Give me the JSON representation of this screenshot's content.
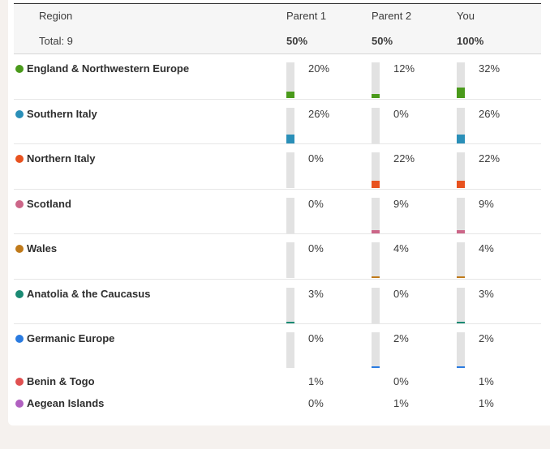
{
  "header": {
    "region_label": "Region",
    "total_label": "Total: 9",
    "columns": [
      {
        "label": "Parent 1",
        "total": "50%"
      },
      {
        "label": "Parent 2",
        "total": "50%"
      },
      {
        "label": "You",
        "total": "100%"
      }
    ]
  },
  "rows": [
    {
      "region": "England & Northwestern Europe",
      "color": "#4a9a1b",
      "values": [
        "20%",
        "12%",
        "32%"
      ],
      "fractions": [
        0.2,
        0.12,
        0.32
      ],
      "show_bars": true
    },
    {
      "region": "Southern Italy",
      "color": "#2a8fb8",
      "values": [
        "26%",
        "0%",
        "26%"
      ],
      "fractions": [
        0.26,
        0.0,
        0.26
      ],
      "show_bars": true
    },
    {
      "region": "Northern Italy",
      "color": "#e8521f",
      "values": [
        "0%",
        "22%",
        "22%"
      ],
      "fractions": [
        0.0,
        0.22,
        0.22
      ],
      "show_bars": true
    },
    {
      "region": "Scotland",
      "color": "#cc6688",
      "values": [
        "0%",
        "9%",
        "9%"
      ],
      "fractions": [
        0.0,
        0.09,
        0.09
      ],
      "show_bars": true
    },
    {
      "region": "Wales",
      "color": "#c07a1a",
      "values": [
        "0%",
        "4%",
        "4%"
      ],
      "fractions": [
        0.0,
        0.04,
        0.04
      ],
      "show_bars": true
    },
    {
      "region": "Anatolia & the Caucasus",
      "color": "#1a8a73",
      "values": [
        "3%",
        "0%",
        "3%"
      ],
      "fractions": [
        0.03,
        0.0,
        0.03
      ],
      "show_bars": true
    },
    {
      "region": "Germanic Europe",
      "color": "#2a7be0",
      "values": [
        "0%",
        "2%",
        "2%"
      ],
      "fractions": [
        0.0,
        0.02,
        0.02
      ],
      "show_bars": true
    },
    {
      "region": "Benin & Togo",
      "color": "#e05050",
      "values": [
        "1%",
        "0%",
        "1%"
      ],
      "fractions": [
        0.01,
        0.0,
        0.01
      ],
      "show_bars": false
    },
    {
      "region": "Aegean Islands",
      "color": "#b060c0",
      "values": [
        "0%",
        "1%",
        "1%"
      ],
      "fractions": [
        0.0,
        0.01,
        0.01
      ],
      "show_bars": false
    }
  ]
}
